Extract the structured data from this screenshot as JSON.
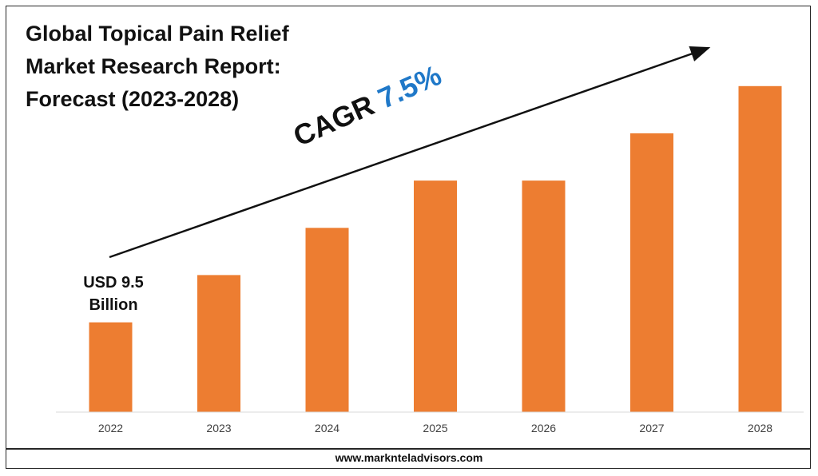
{
  "footer": {
    "website": "www.marknteladvisors.com"
  },
  "chart_data": {
    "type": "bar",
    "title": "Global Topical Pain Relief Market Research Report: Forecast (2023-2028)",
    "categories": [
      "2022",
      "2023",
      "2024",
      "2025",
      "2026",
      "2027",
      "2028"
    ],
    "values": [
      9.5,
      14.5,
      19.5,
      24.5,
      24.5,
      29.5,
      34.5
    ],
    "ylim": [
      0,
      36
    ],
    "unit": "USD Billion",
    "bar_color": "#ed7d31",
    "grid": false,
    "annotations": {
      "cagr_prefix": "CAGR",
      "cagr_value": "7.5%",
      "cagr_value_color": "#1f78c8",
      "first_bar_label": "USD 9.5 Billion"
    }
  }
}
